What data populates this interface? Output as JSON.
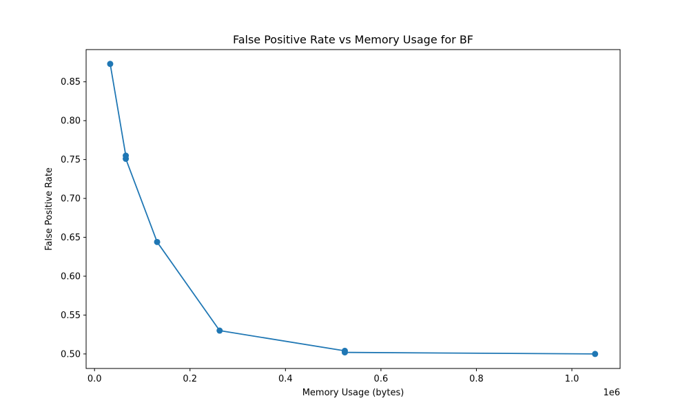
{
  "chart_data": {
    "type": "line",
    "title": "False Positive Rate vs Memory Usage for BF",
    "xlabel": "Memory Usage (bytes)",
    "ylabel": "False Positive Rate",
    "x_offset_label": "1e6",
    "x_scale": 1000000,
    "xlim": [
      -0.0176,
      1.101
    ],
    "ylim": [
      0.4813,
      0.8914
    ],
    "x_ticks": [
      0.0,
      0.2,
      0.4,
      0.6,
      0.8,
      1.0
    ],
    "x_tick_labels": [
      "0.0",
      "0.2",
      "0.4",
      "0.6",
      "0.8",
      "1.0"
    ],
    "y_ticks": [
      0.5,
      0.55,
      0.6,
      0.65,
      0.7,
      0.75,
      0.8,
      0.85
    ],
    "y_tick_labels": [
      "0.50",
      "0.55",
      "0.60",
      "0.65",
      "0.70",
      "0.75",
      "0.80",
      "0.85"
    ],
    "grid": false,
    "series": [
      {
        "color": "#1f77b4",
        "marker": "circle",
        "x": [
          0.0328,
          0.0655,
          0.0655,
          0.1311,
          0.2621,
          0.5243,
          0.5243,
          1.0486
        ],
        "y": [
          0.873,
          0.755,
          0.751,
          0.644,
          0.53,
          0.504,
          0.502,
          0.5
        ]
      }
    ]
  }
}
